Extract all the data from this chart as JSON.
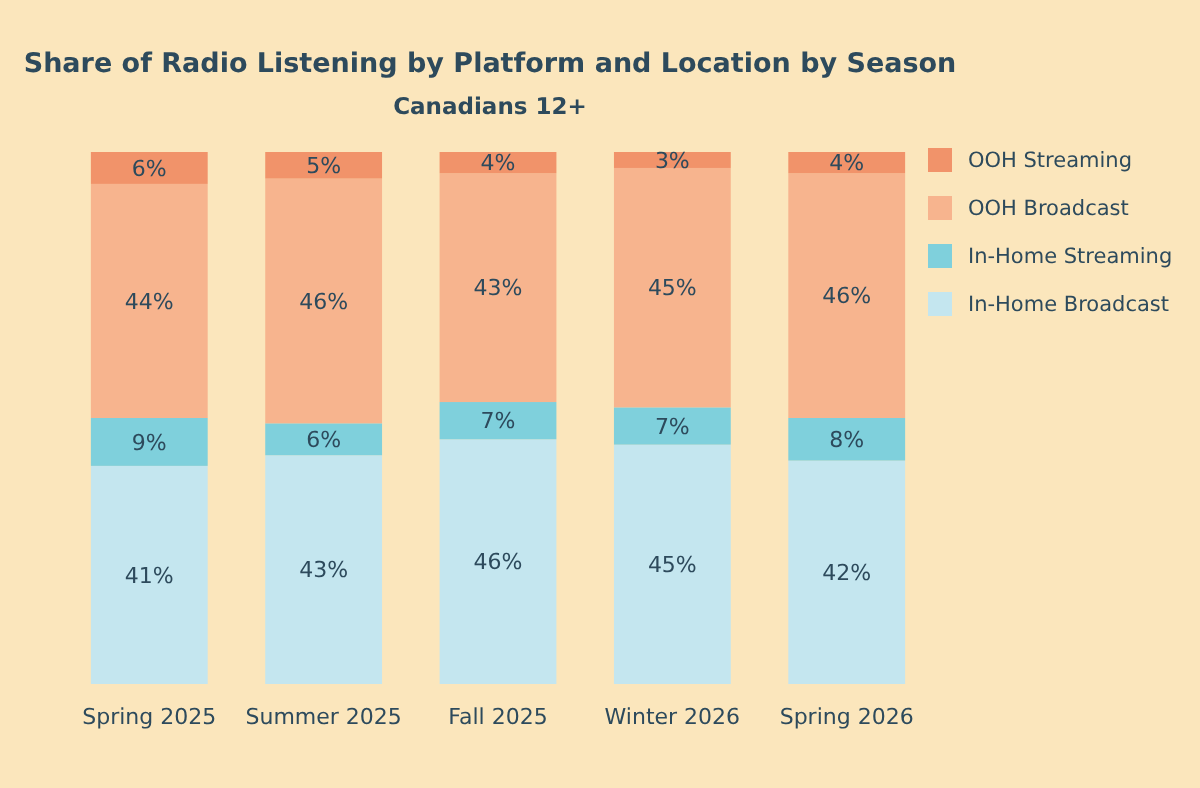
{
  "chart_data": {
    "type": "bar",
    "stacked": true,
    "title": "Share of Radio Listening by Platform and Location by Season",
    "subtitle": "Canadians 12+",
    "categories": [
      "Spring 2025",
      "Summer 2025",
      "Fall 2025",
      "Winter 2026",
      "Spring 2026"
    ],
    "series": [
      {
        "name": "In-Home Broadcast",
        "color": "#c4e6ef",
        "values": [
          41,
          43,
          46,
          45,
          42
        ],
        "value_labels": [
          "41%",
          "43%",
          "46%",
          "45%",
          "42%"
        ]
      },
      {
        "name": "In-Home Streaming",
        "color": "#7fd0dc",
        "values": [
          9,
          6,
          7,
          7,
          8
        ],
        "value_labels": [
          "9%",
          "6%",
          "7%",
          "7%",
          "8%"
        ]
      },
      {
        "name": "OOH Broadcast",
        "color": "#f7b48e",
        "values": [
          44,
          46,
          43,
          45,
          46
        ],
        "value_labels": [
          "44%",
          "46%",
          "43%",
          "45%",
          "46%"
        ]
      },
      {
        "name": "OOH Streaming",
        "color": "#f1936a",
        "values": [
          6,
          5,
          4,
          3,
          4
        ],
        "value_labels": [
          "6%",
          "5%",
          "4%",
          "3%",
          "4%"
        ]
      }
    ],
    "legend": "top right",
    "grid": false
  }
}
